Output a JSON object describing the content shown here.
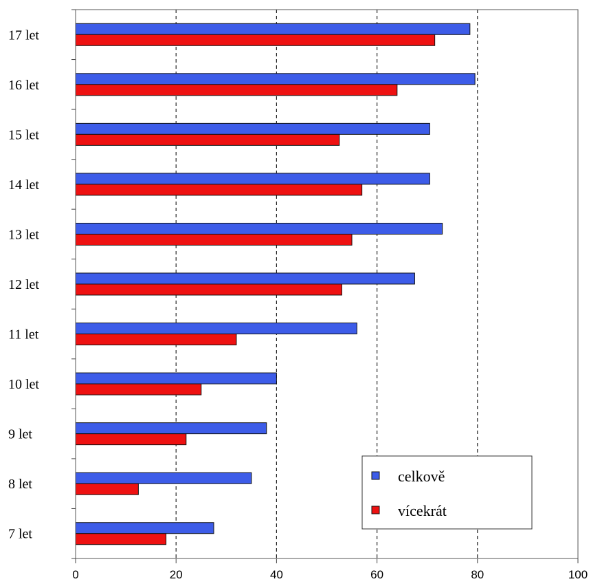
{
  "chart_data": {
    "type": "bar",
    "orientation": "horizontal",
    "categories": [
      "7 let",
      "8 let",
      "9 let",
      "10 let",
      "11 let",
      "12 let",
      "13 let",
      "14 let",
      "15 let",
      "16 let",
      "17 let"
    ],
    "series": [
      {
        "name": "celkově",
        "color": "#3d5ce8",
        "values": [
          27.5,
          35,
          38,
          40,
          56,
          67.5,
          73,
          70.5,
          70.5,
          79.5,
          78.5
        ]
      },
      {
        "name": "vícekrát",
        "color": "#ee1111",
        "values": [
          18,
          12.5,
          22,
          25,
          32,
          53,
          55,
          57,
          52.5,
          64,
          71.5
        ]
      }
    ],
    "xlim": [
      0,
      100
    ],
    "x_ticks": [
      0,
      20,
      40,
      60,
      80,
      100
    ],
    "grid": "vertical dashed",
    "legend_position": "bottom-right"
  }
}
